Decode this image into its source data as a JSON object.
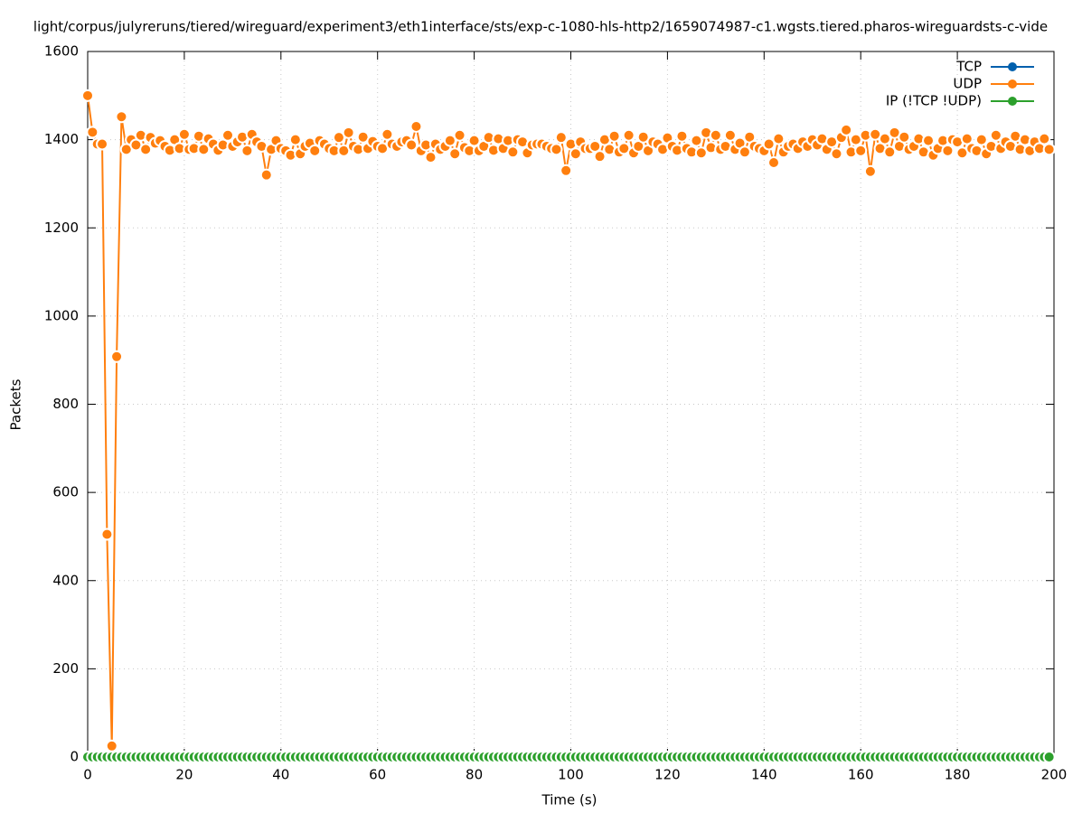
{
  "chart_data": {
    "type": "line",
    "title": "light/corpus/julyreruns/tiered/wireguard/experiment3/eth1interface/sts/exp-c-1080-hls-http2/1659074987-c1.wgsts.tiered.pharos-wireguardsts-c-vide",
    "xlabel": "Time (s)",
    "ylabel": "Packets",
    "xlim": [
      0,
      200
    ],
    "xticks": [
      0,
      20,
      40,
      60,
      80,
      100,
      120,
      140,
      160,
      180,
      200
    ],
    "ylim": [
      0,
      1600
    ],
    "yticks": [
      0,
      200,
      400,
      600,
      800,
      1000,
      1200,
      1400,
      1600
    ],
    "grid": true,
    "legend": "top-right",
    "x": [
      0,
      1,
      2,
      3,
      4,
      5,
      6,
      7,
      8,
      9,
      10,
      11,
      12,
      13,
      14,
      15,
      16,
      17,
      18,
      19,
      20,
      21,
      22,
      23,
      24,
      25,
      26,
      27,
      28,
      29,
      30,
      31,
      32,
      33,
      34,
      35,
      36,
      37,
      38,
      39,
      40,
      41,
      42,
      43,
      44,
      45,
      46,
      47,
      48,
      49,
      50,
      51,
      52,
      53,
      54,
      55,
      56,
      57,
      58,
      59,
      60,
      61,
      62,
      63,
      64,
      65,
      66,
      67,
      68,
      69,
      70,
      71,
      72,
      73,
      74,
      75,
      76,
      77,
      78,
      79,
      80,
      81,
      82,
      83,
      84,
      85,
      86,
      87,
      88,
      89,
      90,
      91,
      92,
      93,
      94,
      95,
      96,
      97,
      98,
      99,
      100,
      101,
      102,
      103,
      104,
      105,
      106,
      107,
      108,
      109,
      110,
      111,
      112,
      113,
      114,
      115,
      116,
      117,
      118,
      119,
      120,
      121,
      122,
      123,
      124,
      125,
      126,
      127,
      128,
      129,
      130,
      131,
      132,
      133,
      134,
      135,
      136,
      137,
      138,
      139,
      140,
      141,
      142,
      143,
      144,
      145,
      146,
      147,
      148,
      149,
      150,
      151,
      152,
      153,
      154,
      155,
      156,
      157,
      158,
      159,
      160,
      161,
      162,
      163,
      164,
      165,
      166,
      167,
      168,
      169,
      170,
      171,
      172,
      173,
      174,
      175,
      176,
      177,
      178,
      179,
      180,
      181,
      182,
      183,
      184,
      185,
      186,
      187,
      188,
      189,
      190,
      191,
      192,
      193,
      194,
      195,
      196,
      197,
      198,
      199
    ],
    "series": [
      {
        "name": "TCP",
        "color": "#0060ad",
        "values": [
          0,
          0,
          0,
          0,
          0,
          0,
          0,
          0,
          0,
          0,
          0,
          0,
          0,
          0,
          0,
          0,
          0,
          0,
          0,
          0,
          0,
          0,
          0,
          0,
          0,
          0,
          0,
          0,
          0,
          0,
          0,
          0,
          0,
          0,
          0,
          0,
          0,
          0,
          0,
          0,
          0,
          0,
          0,
          0,
          0,
          0,
          0,
          0,
          0,
          0,
          0,
          0,
          0,
          0,
          0,
          0,
          0,
          0,
          0,
          0,
          0,
          0,
          0,
          0,
          0,
          0,
          0,
          0,
          0,
          0,
          0,
          0,
          0,
          0,
          0,
          0,
          0,
          0,
          0,
          0,
          0,
          0,
          0,
          0,
          0,
          0,
          0,
          0,
          0,
          0,
          0,
          0,
          0,
          0,
          0,
          0,
          0,
          0,
          0,
          0,
          0,
          0,
          0,
          0,
          0,
          0,
          0,
          0,
          0,
          0,
          0,
          0,
          0,
          0,
          0,
          0,
          0,
          0,
          0,
          0,
          0,
          0,
          0,
          0,
          0,
          0,
          0,
          0,
          0,
          0,
          0,
          0,
          0,
          0,
          0,
          0,
          0,
          0,
          0,
          0,
          0,
          0,
          0,
          0,
          0,
          0,
          0,
          0,
          0,
          0,
          0,
          0,
          0,
          0,
          0,
          0,
          0,
          0,
          0,
          0,
          0,
          0,
          0,
          0,
          0,
          0,
          0,
          0,
          0,
          0,
          0,
          0,
          0,
          0,
          0,
          0,
          0,
          0,
          0,
          0,
          0,
          0,
          0,
          0,
          0,
          0,
          0,
          0,
          0,
          0,
          0,
          0,
          0,
          0,
          0,
          0,
          0,
          0,
          0,
          0
        ]
      },
      {
        "name": "UDP",
        "color": "#ff7f0e",
        "values": [
          1500,
          1417,
          1390,
          1390,
          505,
          25,
          908,
          1452,
          1378,
          1400,
          1388,
          1410,
          1378,
          1405,
          1392,
          1398,
          1385,
          1376,
          1400,
          1380,
          1412,
          1378,
          1380,
          1408,
          1378,
          1402,
          1390,
          1376,
          1388,
          1410,
          1385,
          1395,
          1406,
          1375,
          1412,
          1395,
          1385,
          1320,
          1378,
          1398,
          1380,
          1375,
          1365,
          1400,
          1368,
          1385,
          1392,
          1375,
          1398,
          1390,
          1380,
          1375,
          1405,
          1375,
          1416,
          1385,
          1378,
          1406,
          1380,
          1396,
          1385,
          1380,
          1412,
          1390,
          1385,
          1395,
          1398,
          1388,
          1430,
          1375,
          1388,
          1360,
          1390,
          1378,
          1385,
          1398,
          1368,
          1410,
          1382,
          1375,
          1398,
          1375,
          1385,
          1405,
          1376,
          1402,
          1380,
          1398,
          1372,
          1400,
          1395,
          1370,
          1388,
          1390,
          1390,
          1385,
          1380,
          1378,
          1405,
          1330,
          1390,
          1368,
          1395,
          1380,
          1380,
          1385,
          1362,
          1400,
          1378,
          1408,
          1372,
          1380,
          1410,
          1370,
          1385,
          1406,
          1375,
          1395,
          1390,
          1378,
          1404,
          1385,
          1376,
          1408,
          1380,
          1372,
          1398,
          1370,
          1416,
          1382,
          1410,
          1378,
          1385,
          1410,
          1378,
          1392,
          1372,
          1406,
          1385,
          1380,
          1375,
          1390,
          1348,
          1402,
          1372,
          1385,
          1390,
          1380,
          1395,
          1385,
          1400,
          1388,
          1402,
          1378,
          1395,
          1368,
          1405,
          1422,
          1372,
          1400,
          1375,
          1410,
          1328,
          1412,
          1380,
          1402,
          1372,
          1416,
          1385,
          1406,
          1378,
          1385,
          1402,
          1372,
          1398,
          1365,
          1380,
          1398,
          1375,
          1400,
          1395,
          1370,
          1402,
          1380,
          1375,
          1400,
          1368,
          1385,
          1410,
          1380,
          1395,
          1385,
          1408,
          1378,
          1400,
          1375,
          1395,
          1380,
          1402,
          1378
        ]
      },
      {
        "name": "IP (!TCP  !UDP)",
        "color": "#2ca02c",
        "values": [
          0,
          0,
          0,
          0,
          0,
          0,
          0,
          0,
          0,
          0,
          0,
          0,
          0,
          0,
          0,
          0,
          0,
          0,
          0,
          0,
          0,
          0,
          0,
          0,
          0,
          0,
          0,
          0,
          0,
          0,
          0,
          0,
          0,
          0,
          0,
          0,
          0,
          0,
          0,
          0,
          0,
          0,
          0,
          0,
          0,
          0,
          0,
          0,
          0,
          0,
          0,
          0,
          0,
          0,
          0,
          0,
          0,
          0,
          0,
          0,
          0,
          0,
          0,
          0,
          0,
          0,
          0,
          0,
          0,
          0,
          0,
          0,
          0,
          0,
          0,
          0,
          0,
          0,
          0,
          0,
          0,
          0,
          0,
          0,
          0,
          0,
          0,
          0,
          0,
          0,
          0,
          0,
          0,
          0,
          0,
          0,
          0,
          0,
          0,
          0,
          0,
          0,
          0,
          0,
          0,
          0,
          0,
          0,
          0,
          0,
          0,
          0,
          0,
          0,
          0,
          0,
          0,
          0,
          0,
          0,
          0,
          0,
          0,
          0,
          0,
          0,
          0,
          0,
          0,
          0,
          0,
          0,
          0,
          0,
          0,
          0,
          0,
          0,
          0,
          0,
          0,
          0,
          0,
          0,
          0,
          0,
          0,
          0,
          0,
          0,
          0,
          0,
          0,
          0,
          0,
          0,
          0,
          0,
          0,
          0,
          0,
          0,
          0,
          0,
          0,
          0,
          0,
          0,
          0,
          0,
          0,
          0,
          0,
          0,
          0,
          0,
          0,
          0,
          0,
          0,
          0,
          0,
          0,
          0,
          0,
          0,
          0,
          0,
          0,
          0,
          0,
          0,
          0,
          0,
          0,
          0,
          0,
          0,
          0,
          0
        ]
      }
    ]
  }
}
